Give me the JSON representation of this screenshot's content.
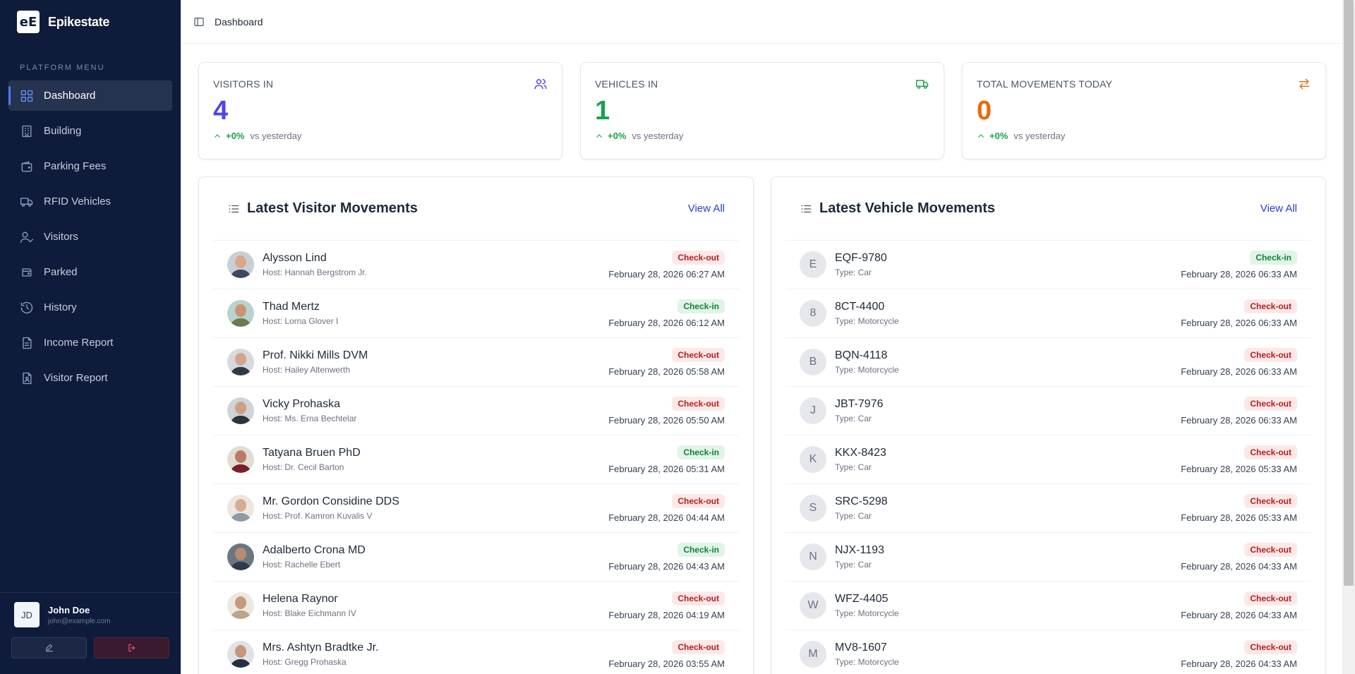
{
  "brand": {
    "logo_text": "eE",
    "name": "Epikestate"
  },
  "sidebar": {
    "menu_title": "PLATFORM MENU",
    "items": [
      {
        "label": "Dashboard",
        "icon": "grid-icon",
        "active": true
      },
      {
        "label": "Building",
        "icon": "building-icon"
      },
      {
        "label": "Parking Fees",
        "icon": "wallet-icon"
      },
      {
        "label": "RFID Vehicles",
        "icon": "truck-icon"
      },
      {
        "label": "Visitors",
        "icon": "user-check-icon"
      },
      {
        "label": "Parked",
        "icon": "car-icon"
      },
      {
        "label": "History",
        "icon": "history-icon"
      },
      {
        "label": "Income Report",
        "icon": "file-report-icon"
      },
      {
        "label": "Visitor Report",
        "icon": "file-user-icon"
      }
    ]
  },
  "user": {
    "initials": "JD",
    "name": "John Doe",
    "email": "john@example.com"
  },
  "header": {
    "breadcrumb": "Dashboard"
  },
  "stats": [
    {
      "label": "VISITORS IN",
      "value": "4",
      "change": "+0%",
      "vs": "vs yesterday",
      "color": "#4f46e5",
      "icon": "users-icon"
    },
    {
      "label": "VEHICLES IN",
      "value": "1",
      "change": "+0%",
      "vs": "vs yesterday",
      "color": "#16a34a",
      "icon": "truck-icon"
    },
    {
      "label": "TOTAL MOVEMENTS TODAY",
      "value": "0",
      "change": "+0%",
      "vs": "vs yesterday",
      "color": "#ea6a0c",
      "icon": "swap-icon"
    }
  ],
  "visitor_panel": {
    "title": "Latest Visitor Movements",
    "view_all": "View All",
    "rows": [
      {
        "name": "Alysson Lind",
        "sub": "Host: Hannah Bergstrom Jr.",
        "status": "Check-out",
        "time": "February 28, 2026 06:27 AM"
      },
      {
        "name": "Thad Mertz",
        "sub": "Host: Lorna Glover I",
        "status": "Check-in",
        "time": "February 28, 2026 06:12 AM"
      },
      {
        "name": "Prof. Nikki Mills DVM",
        "sub": "Host: Hailey Altenwerth",
        "status": "Check-out",
        "time": "February 28, 2026 05:58 AM"
      },
      {
        "name": "Vicky Prohaska",
        "sub": "Host: Ms. Erna Bechtelar",
        "status": "Check-out",
        "time": "February 28, 2026 05:50 AM"
      },
      {
        "name": "Tatyana Bruen PhD",
        "sub": "Host: Dr. Cecil Barton",
        "status": "Check-in",
        "time": "February 28, 2026 05:31 AM"
      },
      {
        "name": "Mr. Gordon Considine DDS",
        "sub": "Host: Prof. Kamron Kuvalis V",
        "status": "Check-out",
        "time": "February 28, 2026 04:44 AM"
      },
      {
        "name": "Adalberto Crona MD",
        "sub": "Host: Rachelle Ebert",
        "status": "Check-in",
        "time": "February 28, 2026 04:43 AM"
      },
      {
        "name": "Helena Raynor",
        "sub": "Host: Blake Eichmann IV",
        "status": "Check-out",
        "time": "February 28, 2026 04:19 AM"
      },
      {
        "name": "Mrs. Ashtyn Bradtke Jr.",
        "sub": "Host: Gregg Prohaska",
        "status": "Check-out",
        "time": "February 28, 2026 03:55 AM"
      }
    ]
  },
  "vehicle_panel": {
    "title": "Latest Vehicle Movements",
    "view_all": "View All",
    "rows": [
      {
        "letter": "E",
        "name": "EQF-9780",
        "sub": "Type: Car",
        "status": "Check-in",
        "time": "February 28, 2026 06:33 AM"
      },
      {
        "letter": "8",
        "name": "8CT-4400",
        "sub": "Type: Motorcycle",
        "status": "Check-out",
        "time": "February 28, 2026 06:33 AM"
      },
      {
        "letter": "B",
        "name": "BQN-4118",
        "sub": "Type: Motorcycle",
        "status": "Check-out",
        "time": "February 28, 2026 06:33 AM"
      },
      {
        "letter": "J",
        "name": "JBT-7976",
        "sub": "Type: Car",
        "status": "Check-out",
        "time": "February 28, 2026 06:33 AM"
      },
      {
        "letter": "K",
        "name": "KKX-8423",
        "sub": "Type: Car",
        "status": "Check-out",
        "time": "February 28, 2026 05:33 AM"
      },
      {
        "letter": "S",
        "name": "SRC-5298",
        "sub": "Type: Car",
        "status": "Check-out",
        "time": "February 28, 2026 05:33 AM"
      },
      {
        "letter": "N",
        "name": "NJX-1193",
        "sub": "Type: Car",
        "status": "Check-out",
        "time": "February 28, 2026 04:33 AM"
      },
      {
        "letter": "W",
        "name": "WFZ-4405",
        "sub": "Type: Motorcycle",
        "status": "Check-out",
        "time": "February 28, 2026 04:33 AM"
      },
      {
        "letter": "M",
        "name": "MV8-1607",
        "sub": "Type: Motorcycle",
        "status": "Check-out",
        "time": "February 28, 2026 04:33 AM"
      }
    ]
  }
}
